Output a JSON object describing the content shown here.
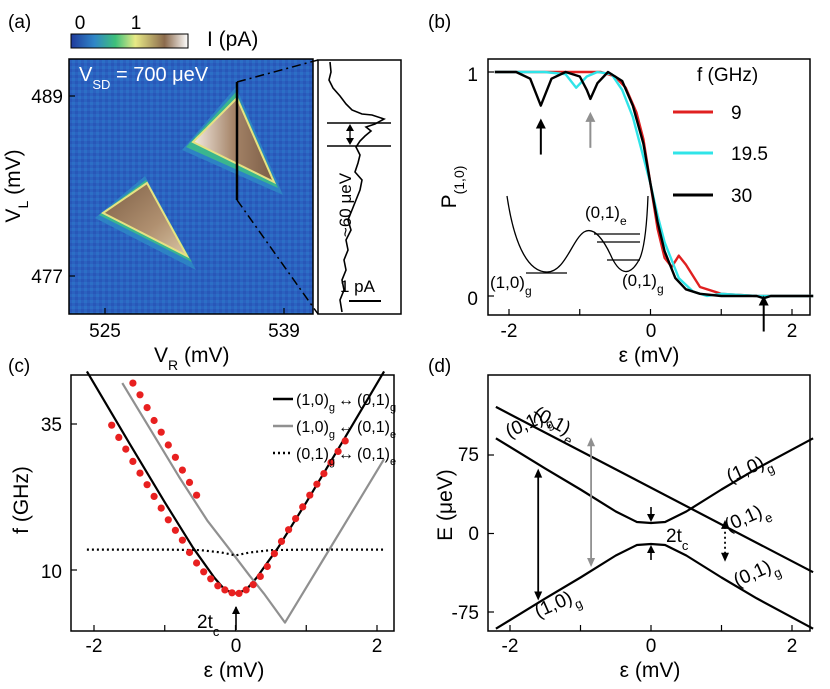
{
  "panels": {
    "a": {
      "letter": "(a)",
      "colorbar": {
        "tick_min": "0",
        "tick_max": "1",
        "label": "I (pA)",
        "colors": [
          "#1f3a9c",
          "#2f86c8",
          "#3ec07a",
          "#e8ea86",
          "#8b6a4c",
          "#ffffff"
        ]
      },
      "annotation": "V",
      "annotation_sub": "SD",
      "annotation_value": " = 700 μeV",
      "xlabel_main": "V",
      "xlabel_sub": "R",
      "xlabel_unit": " (mV)",
      "ylabel_main": "V",
      "ylabel_sub": "L",
      "ylabel_unit": " (mV)",
      "x_ticks": [
        "525",
        "539"
      ],
      "y_ticks": [
        "489",
        "477"
      ],
      "inset_label": "~60 μeV",
      "inset_scale": "1 pA"
    },
    "b": {
      "letter": "(b)",
      "xlabel": "ε (mV)",
      "ylabel_main": "P",
      "ylabel_sub": "(1,0)",
      "x_ticks": [
        "-2",
        "0",
        "2"
      ],
      "y_ticks": [
        "0",
        "1"
      ],
      "legend_title": "f (GHz)",
      "legend": [
        "9",
        "19.5",
        "30"
      ],
      "inset_labels": {
        "left": "(1,0)",
        "left_sub": "g",
        "right_top": "(0,1)",
        "right_top_sub": "e",
        "right_bottom": "(0,1)",
        "right_bottom_sub": "g"
      }
    },
    "c": {
      "letter": "(c)",
      "xlabel": "ε (mV)",
      "ylabel": "f (GHz)",
      "x_ticks": [
        "-2",
        "0",
        "2"
      ],
      "y_ticks": [
        "10",
        "35"
      ],
      "legend": [
        {
          "a": "(1,0)",
          "as": "g",
          "b": "(0,1)",
          "bs": "g"
        },
        {
          "a": "(1,0)",
          "as": "g",
          "b": "(0,1)",
          "bs": "e"
        },
        {
          "a": "(0,1)",
          "as": "g",
          "b": "(0,1)",
          "bs": "e"
        }
      ],
      "gap_label": "2t",
      "gap_sub": "c"
    },
    "d": {
      "letter": "(d)",
      "xlabel": "ε (mV)",
      "ylabel": "E (μeV)",
      "x_ticks": [
        "-2",
        "0",
        "2"
      ],
      "y_ticks": [
        "75",
        "0",
        "-75"
      ],
      "gap_label": "2t",
      "gap_sub": "c",
      "branch_labels": [
        {
          "t": "(0,1)",
          "s": "e"
        },
        {
          "t": "(0,1)",
          "s": "g"
        },
        {
          "t": "(1,0)",
          "s": "g"
        },
        {
          "t": "(0,1)",
          "s": "e"
        },
        {
          "t": "(0,1)",
          "s": "g"
        },
        {
          "t": "(1,0)",
          "s": "g"
        }
      ]
    }
  },
  "chart_data": [
    {
      "panel": "a",
      "type": "heatmap",
      "xlabel": "V_R (mV)",
      "ylabel": "V_L (mV)",
      "x_ticks": [
        525,
        539
      ],
      "y_ticks": [
        489,
        477
      ],
      "colorbar_range": [
        0,
        1
      ],
      "colorbar_label": "I (pA)",
      "features": [
        "lower-left triangle",
        "upper-right triangle"
      ],
      "inset_trace_note": "~60 μeV"
    },
    {
      "panel": "b",
      "type": "line",
      "xlabel": "ε (mV)",
      "ylabel": "P_(1,0)",
      "xlim": [
        -2.2,
        2.3
      ],
      "ylim": [
        0,
        1
      ],
      "legend_title": "f (GHz)",
      "legend_placement": "right",
      "series": [
        {
          "name": "9",
          "color": "#e02020",
          "x": [
            -2.2,
            -1.8,
            -1.4,
            -1.0,
            -0.7,
            -0.5,
            -0.35,
            -0.2,
            -0.1,
            0.0,
            0.1,
            0.2,
            0.3,
            0.4,
            0.5,
            0.7,
            1.0,
            1.5,
            2.0,
            2.3
          ],
          "y": [
            1.0,
            1.0,
            1.0,
            1.0,
            1.0,
            0.98,
            0.93,
            0.82,
            0.7,
            0.5,
            0.3,
            0.17,
            0.13,
            0.18,
            0.14,
            0.04,
            0.01,
            0.0,
            0.0,
            0.0
          ]
        },
        {
          "name": "19.5",
          "color": "#30e4e8",
          "x": [
            -2.2,
            -1.5,
            -1.2,
            -1.05,
            -0.9,
            -0.75,
            -0.55,
            -0.4,
            -0.25,
            -0.1,
            0.0,
            0.1,
            0.2,
            0.4,
            0.6,
            0.8,
            1.0,
            1.5,
            2.0,
            2.3
          ],
          "y": [
            1.0,
            1.0,
            0.99,
            0.93,
            0.98,
            1.0,
            0.99,
            0.92,
            0.8,
            0.62,
            0.5,
            0.36,
            0.24,
            0.08,
            0.02,
            0.0,
            0.01,
            0.0,
            0.0,
            0.0
          ]
        },
        {
          "name": "30",
          "color": "#000000",
          "x": [
            -2.2,
            -1.9,
            -1.7,
            -1.55,
            -1.4,
            -1.2,
            -1.0,
            -0.9,
            -0.85,
            -0.75,
            -0.6,
            -0.4,
            -0.25,
            -0.1,
            0.0,
            0.1,
            0.2,
            0.35,
            0.5,
            0.7,
            1.0,
            1.5,
            1.6,
            1.7,
            2.0,
            2.3
          ],
          "y": [
            1.0,
            1.0,
            0.97,
            0.85,
            0.97,
            1.0,
            0.98,
            0.92,
            0.88,
            0.95,
            1.0,
            0.96,
            0.85,
            0.68,
            0.5,
            0.33,
            0.2,
            0.08,
            0.03,
            0.01,
            0.0,
            0.0,
            -0.01,
            0.0,
            0.0,
            0.0
          ]
        }
      ],
      "arrows": [
        {
          "x": -1.55,
          "y_tip": 0.81,
          "color": "#000000"
        },
        {
          "x": -0.85,
          "y_tip": 0.84,
          "color": "#909090"
        },
        {
          "x": 1.6,
          "y_tip": 0.02,
          "color": "#000000"
        }
      ]
    },
    {
      "panel": "c",
      "type": "scatter",
      "xlabel": "ε (mV)",
      "ylabel": "f (GHz)",
      "xlim": [
        -2.2,
        2.3
      ],
      "ylim": [
        0,
        45
      ],
      "legend_placement": "top",
      "series": [
        {
          "name": "(1,0)_g ↔ (0,1)_g",
          "style": "solid-black",
          "x": [
            -2.1,
            -1.5,
            -1.0,
            -0.6,
            -0.3,
            -0.15,
            0.0,
            0.15,
            0.3,
            0.6,
            1.0,
            1.5,
            2.1
          ],
          "y": [
            44.0,
            31.7,
            21.6,
            13.8,
            8.7,
            6.6,
            6.0,
            6.6,
            8.7,
            13.8,
            21.6,
            31.7,
            44.0
          ]
        },
        {
          "name": "(1,0)_g ↔ (0,1)_e",
          "style": "solid-gray",
          "x": [
            -1.6,
            -1.2,
            -0.8,
            -0.4,
            -0.1,
            0.2,
            0.4,
            0.55,
            0.7,
            0.9,
            1.3,
            1.7,
            2.1
          ],
          "y": [
            42.0,
            34.0,
            26.0,
            18.5,
            13.8,
            9.0,
            6.0,
            3.5,
            1.0,
            5.0,
            13.0,
            21.0,
            29.0
          ]
        },
        {
          "name": "(0,1)_g ↔ (0,1)_e",
          "style": "dotted-black",
          "x": [
            -2.1,
            -1.0,
            -0.5,
            -0.2,
            0.0,
            0.2,
            0.5,
            1.0,
            2.1
          ],
          "y": [
            13.5,
            13.5,
            13.4,
            13.0,
            12.5,
            13.0,
            13.4,
            13.5,
            13.5
          ]
        },
        {
          "name": "data",
          "style": "red-markers",
          "x": [
            -1.75,
            -1.65,
            -1.55,
            -1.45,
            -1.35,
            -1.25,
            -1.15,
            -1.05,
            -0.95,
            -0.85,
            -0.75,
            -0.65,
            -0.55,
            -0.45,
            -0.35,
            -0.25,
            -0.15,
            -0.05,
            0.05,
            0.15,
            0.25,
            0.35,
            0.45,
            0.55,
            0.65,
            0.75,
            0.85,
            0.95,
            1.05,
            1.15,
            1.25,
            1.35,
            1.45,
            1.55,
            -1.45,
            -1.35,
            -1.25,
            -1.15,
            -1.05,
            -0.95,
            -0.85,
            -0.75,
            -0.65,
            -0.55
          ],
          "y": [
            34.8,
            32.7,
            30.7,
            28.6,
            26.6,
            24.6,
            22.6,
            20.6,
            18.6,
            16.8,
            15.1,
            13.0,
            11.2,
            9.7,
            8.5,
            7.3,
            6.6,
            6.1,
            6.0,
            6.6,
            7.5,
            8.9,
            10.6,
            12.8,
            14.9,
            16.9,
            18.8,
            20.8,
            22.8,
            24.7,
            26.5,
            28.4,
            30.3,
            32.1,
            42.0,
            40.0,
            37.8,
            35.6,
            33.6,
            31.4,
            29.3,
            27.1,
            25.0,
            22.8
          ]
        }
      ],
      "annotation": "2t_c"
    },
    {
      "panel": "d",
      "type": "line",
      "xlabel": "ε (mV)",
      "ylabel": "E (μeV)",
      "xlim": [
        -2.2,
        2.3
      ],
      "ylim": [
        -85,
        100
      ],
      "series": [
        {
          "name": "upper ground branch",
          "x": [
            -2.2,
            -1.5,
            -1.0,
            -0.5,
            -0.2,
            0.0,
            0.2,
            0.5,
            1.0,
            1.5,
            2.3
          ],
          "y": [
            91,
            62,
            42,
            21,
            11,
            10,
            11,
            21,
            42,
            62,
            91
          ]
        },
        {
          "name": "lower ground branch",
          "x": [
            -2.2,
            -1.5,
            -1.0,
            -0.5,
            -0.2,
            0.0,
            0.2,
            0.5,
            1.0,
            1.5,
            2.3
          ],
          "y": [
            -91,
            -62,
            -42,
            -21,
            -11,
            -10,
            -11,
            -21,
            -42,
            -62,
            -91
          ]
        },
        {
          "name": "(0,1)_e",
          "x": [
            -2.2,
            2.3
          ],
          "y": [
            121,
            -37
          ]
        }
      ],
      "transitions": [
        {
          "x": -1.6,
          "from": -64,
          "to": 62,
          "color": "#000000",
          "style": "solid"
        },
        {
          "x": -0.85,
          "from": -32,
          "to": 92,
          "color": "#909090",
          "style": "solid"
        },
        {
          "x": 0.0,
          "from": -10,
          "to": 10,
          "color": "#000000",
          "style": "gap"
        },
        {
          "x": 1.05,
          "from": -27,
          "to": 13,
          "color": "#000000",
          "style": "dotted"
        }
      ],
      "annotation": "2t_c"
    }
  ]
}
